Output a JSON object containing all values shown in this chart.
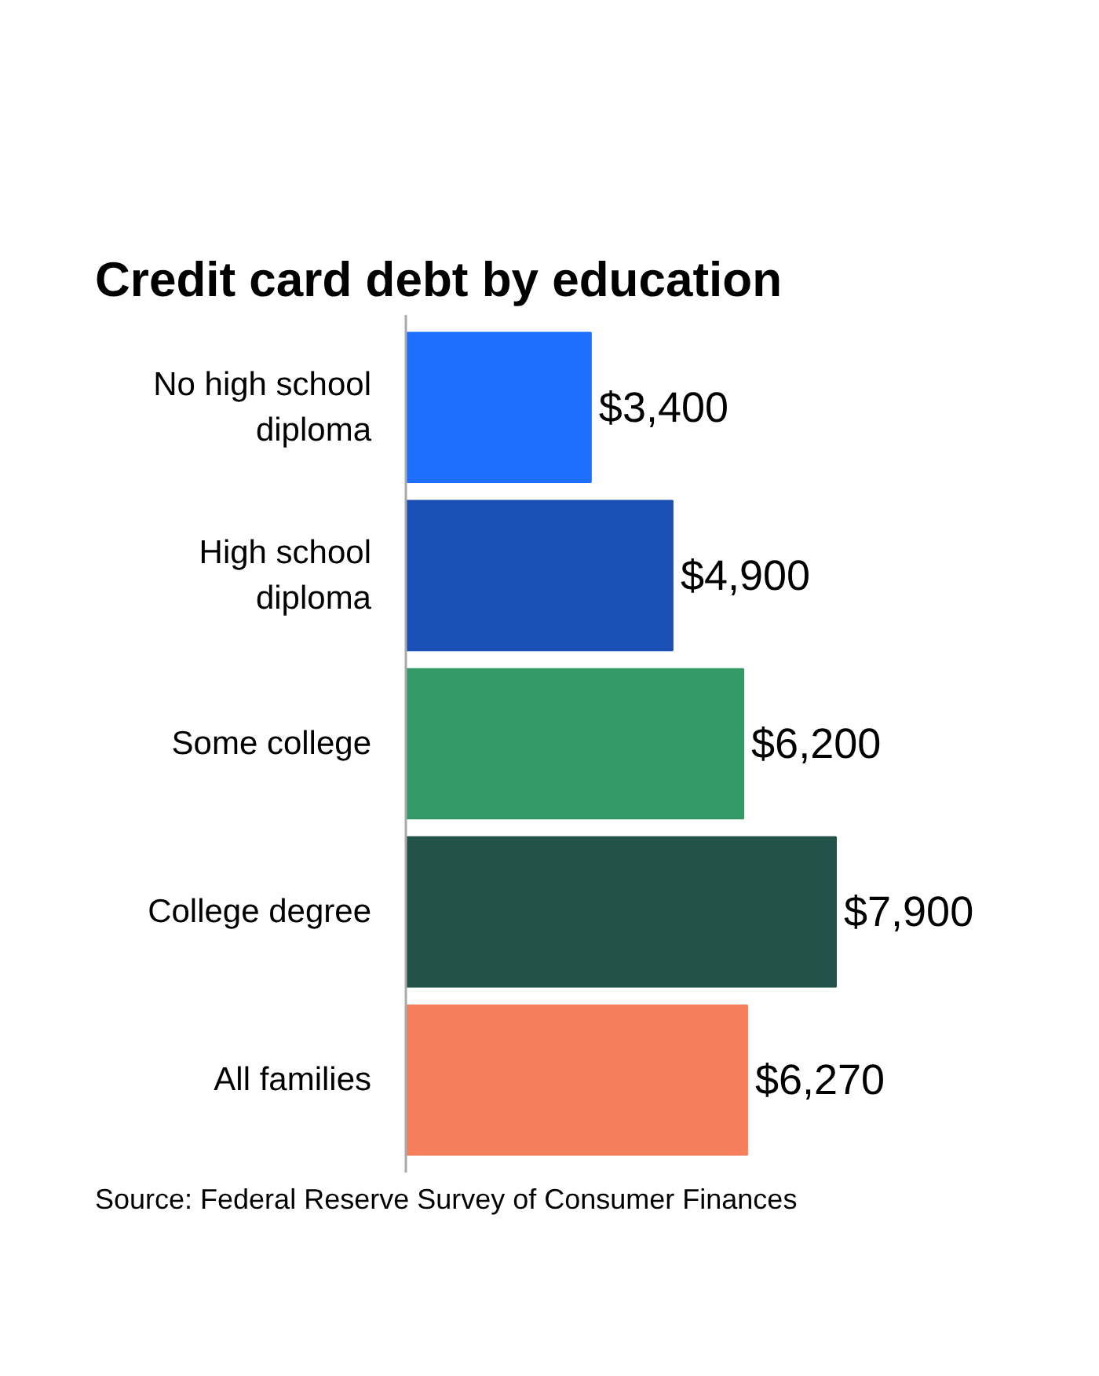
{
  "chart_data": {
    "type": "bar",
    "orientation": "horizontal",
    "title": "Credit card debt by education",
    "categories": [
      "No high school diploma",
      "High school diploma",
      "Some college",
      "College degree",
      "All families"
    ],
    "values": [
      3400,
      4900,
      6200,
      7900,
      6270
    ],
    "colors": [
      "#1f6fff",
      "#1a4fb5",
      "#339966",
      "#22524a",
      "#f57f5b"
    ],
    "value_labels": [
      "$3,400",
      "$4,900",
      "$6,200",
      "$7,900",
      "$6,270"
    ],
    "relative": false,
    "grid": false,
    "annotations": [
      "Source: Federal Reserve Survey of Consumer Finances"
    ]
  }
}
